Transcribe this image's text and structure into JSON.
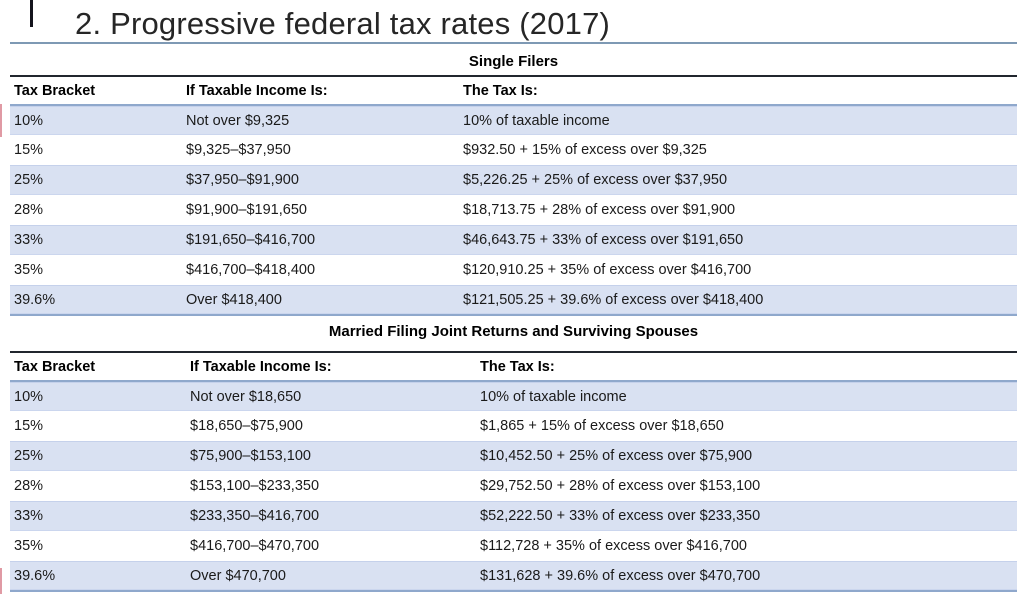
{
  "slide": {
    "title": "2. Progressive federal tax rates (2017)"
  },
  "tables": [
    {
      "caption": "Single Filers",
      "headers": [
        "Tax Bracket",
        "If Taxable Income Is:",
        "The Tax Is:"
      ],
      "rows": [
        [
          "10%",
          "Not over $9,325",
          "10% of taxable income"
        ],
        [
          "15%",
          "$9,325–$37,950",
          "$932.50 + 15% of excess over $9,325"
        ],
        [
          "25%",
          "$37,950–$91,900",
          "$5,226.25 + 25% of excess over $37,950"
        ],
        [
          "28%",
          "$91,900–$191,650",
          "$18,713.75 + 28% of excess over $91,900"
        ],
        [
          "33%",
          "$191,650–$416,700",
          "$46,643.75 + 33% of excess over $191,650"
        ],
        [
          "35%",
          "$416,700–$418,400",
          "$120,910.25 + 35% of excess over $416,700"
        ],
        [
          "39.6%",
          "Over $418,400",
          "$121,505.25 + 39.6% of excess over $418,400"
        ]
      ]
    },
    {
      "caption": "Married Filing Joint Returns and Surviving Spouses",
      "headers": [
        "Tax Bracket",
        "If Taxable Income Is:",
        "The Tax Is:"
      ],
      "rows": [
        [
          "10%",
          "Not over $18,650",
          "10% of taxable income"
        ],
        [
          "15%",
          "$18,650–$75,900",
          "$1,865 + 15% of excess over $18,650"
        ],
        [
          "25%",
          "$75,900–$153,100",
          "$10,452.50 + 25% of excess over $75,900"
        ],
        [
          "28%",
          "$153,100–$233,350",
          "$29,752.50 + 28% of excess over $153,100"
        ],
        [
          "33%",
          "$233,350–$416,700",
          "$52,222.50 + 33% of excess over $233,350"
        ],
        [
          "35%",
          "$416,700–$470,700",
          "$112,728 + 35% of excess over $416,700"
        ],
        [
          "39.6%",
          "Over $470,700",
          "$131,628 + 39.6% of excess over $470,700"
        ]
      ]
    }
  ],
  "colors": {
    "band": "#D9E1F2",
    "rule_blue": "#8FA8CC",
    "rule_dark": "#21262E",
    "title_rule": "#7E99B4"
  }
}
